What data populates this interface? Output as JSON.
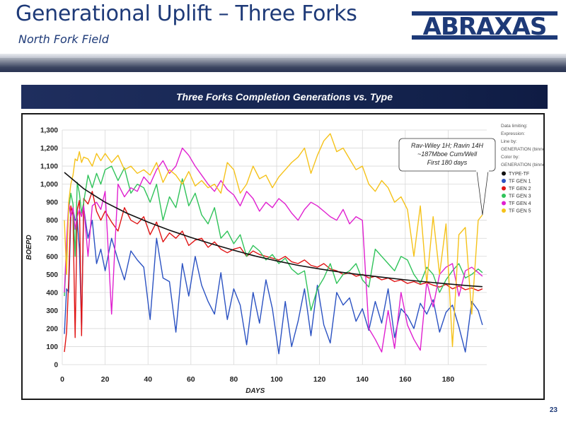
{
  "slide": {
    "title": "Generational Uplift – Three Forks",
    "subtitle": "North Fork Field",
    "logo_text": "ABRAXAS",
    "page_number": "23",
    "banner": "Three Forks Completion Generations vs. Type"
  },
  "colors": {
    "brand": "#1e3a78",
    "banner": "#1a2a5a"
  },
  "chart_data": {
    "type": "line",
    "title": "Three Forks Completion Generations vs. Type",
    "xlabel": "DAYS",
    "ylabel": "BOEPD",
    "xlim": [
      0,
      198
    ],
    "ylim": [
      0,
      1300
    ],
    "xticks": [
      0,
      20,
      40,
      60,
      80,
      100,
      120,
      140,
      160,
      180
    ],
    "yticks": [
      0,
      100,
      200,
      300,
      400,
      500,
      600,
      700,
      800,
      900,
      1000,
      1100,
      1200,
      1300
    ],
    "ytick_labels": [
      "0",
      "100",
      "200",
      "300",
      "400",
      "500",
      "600",
      "700",
      "800",
      "900",
      "1,000",
      "1,100",
      "1,200",
      "1,300"
    ],
    "legend": {
      "position": "right",
      "header": [
        "Data limiting:",
        "Expression:",
        "Line by:",
        "GENERATION (binned)",
        "Color by:",
        "GENERATION (binned)"
      ],
      "entries": [
        "TYPE-TF",
        "TF GEN 1",
        "TF GEN 2",
        "TF GEN 3",
        "TF GEN 4",
        "TF GEN 5"
      ]
    },
    "annotation": {
      "lines": [
        "Rav-Wiley 1H; Ravin 14H",
        "~187Mboe Cum/Well",
        "First 180 days"
      ],
      "points_to": {
        "x": 196,
        "y": 830
      }
    },
    "series": [
      {
        "name": "TYPE-TF",
        "color": "#111111",
        "x": [
          1,
          5,
          10,
          20,
          30,
          40,
          50,
          60,
          70,
          80,
          90,
          100,
          110,
          120,
          130,
          140,
          150,
          160,
          170,
          180,
          190,
          196
        ],
        "values": [
          1065,
          1025,
          975,
          900,
          840,
          790,
          745,
          705,
          668,
          634,
          602,
          575,
          550,
          530,
          512,
          497,
          483,
          470,
          458,
          447,
          437,
          432
        ]
      },
      {
        "name": "TF GEN 1",
        "color": "#2b52c2",
        "x": [
          1,
          2,
          3,
          4,
          5,
          6,
          7,
          8,
          9,
          10,
          12,
          14,
          16,
          18,
          20,
          23,
          26,
          29,
          32,
          35,
          38,
          41,
          44,
          47,
          50,
          53,
          56,
          59,
          62,
          65,
          68,
          71,
          74,
          77,
          80,
          83,
          86,
          89,
          92,
          95,
          98,
          101,
          104,
          107,
          110,
          113,
          116,
          119,
          122,
          125,
          128,
          131,
          134,
          137,
          140,
          143,
          146,
          149,
          152,
          155,
          158,
          161,
          164,
          167,
          170,
          173,
          176,
          179,
          182,
          185,
          188,
          191,
          194,
          196
        ],
        "values": [
          170,
          420,
          400,
          820,
          860,
          800,
          810,
          640,
          200,
          870,
          700,
          800,
          560,
          640,
          520,
          700,
          580,
          470,
          630,
          580,
          540,
          250,
          700,
          480,
          460,
          180,
          560,
          380,
          600,
          440,
          350,
          280,
          510,
          250,
          420,
          330,
          110,
          400,
          230,
          470,
          310,
          60,
          350,
          100,
          240,
          420,
          160,
          440,
          220,
          120,
          400,
          330,
          370,
          240,
          310,
          190,
          350,
          230,
          420,
          150,
          310,
          270,
          200,
          340,
          280,
          360,
          180,
          290,
          330,
          210,
          70,
          350,
          300,
          220
        ]
      },
      {
        "name": "TF GEN 2",
        "color": "#e01515",
        "x": [
          1,
          2,
          3,
          4,
          5,
          6,
          7,
          8,
          9,
          10,
          12,
          14,
          16,
          18,
          20,
          23,
          26,
          29,
          32,
          35,
          38,
          41,
          44,
          47,
          50,
          53,
          56,
          59,
          62,
          65,
          68,
          71,
          74,
          77,
          80,
          83,
          86,
          89,
          92,
          95,
          98,
          101,
          104,
          107,
          110,
          113,
          116,
          119,
          122,
          125,
          128,
          131,
          134,
          137,
          140,
          143,
          146,
          149,
          152,
          155,
          158,
          161,
          164,
          167,
          170,
          173,
          176,
          179,
          182,
          185,
          188,
          191,
          194,
          196
        ],
        "values": [
          70,
          180,
          470,
          880,
          830,
          150,
          860,
          910,
          160,
          920,
          890,
          960,
          850,
          800,
          850,
          790,
          740,
          870,
          800,
          780,
          820,
          720,
          790,
          680,
          730,
          700,
          740,
          660,
          690,
          700,
          650,
          680,
          640,
          620,
          640,
          650,
          600,
          630,
          610,
          600,
          590,
          580,
          600,
          570,
          560,
          580,
          550,
          540,
          560,
          530,
          520,
          500,
          510,
          490,
          500,
          480,
          490,
          470,
          480,
          460,
          470,
          450,
          460,
          445,
          455,
          440,
          430,
          445,
          420,
          435,
          415,
          425,
          410,
          420
        ]
      },
      {
        "name": "TF GEN 3",
        "color": "#30c35a",
        "x": [
          1,
          2,
          3,
          4,
          5,
          6,
          7,
          8,
          9,
          10,
          12,
          14,
          16,
          18,
          20,
          23,
          26,
          29,
          32,
          35,
          38,
          41,
          44,
          47,
          50,
          53,
          56,
          59,
          62,
          65,
          68,
          71,
          74,
          77,
          80,
          83,
          86,
          89,
          92,
          95,
          98,
          101,
          104,
          107,
          110,
          113,
          116,
          119,
          122,
          125,
          128,
          131,
          134,
          137,
          140,
          143,
          146,
          149,
          152,
          155,
          158,
          161,
          164,
          167,
          170,
          173,
          176,
          179,
          182,
          185,
          188,
          191,
          194,
          196
        ],
        "values": [
          380,
          620,
          860,
          950,
          890,
          600,
          1010,
          950,
          840,
          900,
          1050,
          980,
          1060,
          1000,
          1080,
          1100,
          1020,
          1090,
          950,
          1000,
          980,
          900,
          1000,
          800,
          930,
          870,
          1030,
          880,
          950,
          830,
          780,
          870,
          700,
          740,
          670,
          720,
          600,
          660,
          630,
          580,
          610,
          560,
          590,
          530,
          500,
          520,
          300,
          420,
          480,
          560,
          450,
          500,
          520,
          560,
          470,
          430,
          640,
          600,
          560,
          520,
          600,
          580,
          500,
          450,
          540,
          500,
          400,
          470,
          520,
          560,
          480,
          500,
          530,
          510
        ]
      },
      {
        "name": "TF GEN 4",
        "color": "#e020d0",
        "x": [
          1,
          2,
          3,
          4,
          5,
          6,
          7,
          8,
          9,
          10,
          12,
          14,
          16,
          18,
          20,
          23,
          26,
          29,
          32,
          35,
          38,
          41,
          44,
          47,
          50,
          53,
          56,
          59,
          62,
          65,
          68,
          71,
          74,
          77,
          80,
          83,
          86,
          89,
          92,
          95,
          98,
          101,
          104,
          107,
          110,
          113,
          116,
          119,
          122,
          125,
          128,
          131,
          134,
          137,
          140,
          143,
          146,
          149,
          152,
          155,
          158,
          161,
          164,
          167,
          170,
          173,
          176,
          179,
          182,
          185,
          188,
          191,
          194,
          196
        ],
        "values": [
          400,
          680,
          900,
          820,
          870,
          750,
          820,
          860,
          820,
          880,
          600,
          880,
          900,
          860,
          960,
          280,
          1000,
          930,
          980,
          960,
          1040,
          1000,
          1080,
          1130,
          1060,
          1100,
          1200,
          1160,
          1100,
          1050,
          1000,
          960,
          1020,
          970,
          940,
          880,
          960,
          920,
          850,
          900,
          870,
          920,
          890,
          840,
          800,
          860,
          900,
          880,
          850,
          820,
          800,
          860,
          780,
          820,
          800,
          200,
          140,
          70,
          300,
          90,
          400,
          220,
          140,
          80,
          460,
          320,
          500,
          540,
          560,
          380,
          520,
          540,
          510,
          490
        ]
      },
      {
        "name": "TF GEN 5",
        "color": "#f5c21a",
        "x": [
          1,
          2,
          3,
          4,
          5,
          6,
          7,
          8,
          9,
          10,
          12,
          14,
          16,
          18,
          20,
          23,
          26,
          29,
          32,
          35,
          38,
          41,
          44,
          47,
          50,
          53,
          56,
          59,
          62,
          65,
          68,
          71,
          74,
          77,
          80,
          83,
          86,
          89,
          92,
          95,
          98,
          101,
          104,
          107,
          110,
          113,
          116,
          119,
          122,
          125,
          128,
          131,
          134,
          137,
          140,
          143,
          146,
          149,
          152,
          155,
          158,
          161,
          164,
          167,
          170,
          173,
          176,
          179,
          182,
          185,
          188,
          191,
          194,
          196
        ],
        "values": [
          800,
          500,
          900,
          1000,
          1050,
          1140,
          1130,
          1180,
          1120,
          1150,
          1140,
          1100,
          1170,
          1130,
          1170,
          1120,
          1160,
          1080,
          1100,
          1060,
          1080,
          1050,
          1120,
          1010,
          1080,
          1050,
          1000,
          1070,
          990,
          1020,
          980,
          1000,
          950,
          1120,
          1080,
          950,
          1000,
          1100,
          1030,
          1050,
          980,
          1040,
          1080,
          1120,
          1150,
          1200,
          1060,
          1160,
          1240,
          1280,
          1180,
          1200,
          1140,
          1080,
          1100,
          1000,
          960,
          1020,
          980,
          900,
          930,
          860,
          600,
          880,
          450,
          820,
          500,
          780,
          100,
          720,
          760,
          280,
          800,
          830
        ]
      }
    ]
  }
}
